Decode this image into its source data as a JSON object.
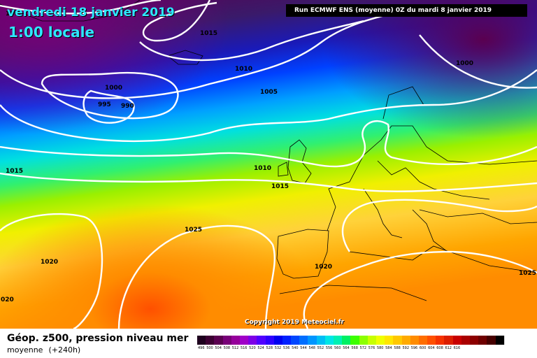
{
  "header": {
    "date": "vendredi 18 janvier 2019",
    "time": "1:00 locale",
    "run": "Run ECMWF ENS (moyenne) 0Z du mardi 8 janvier 2019"
  },
  "copyright": "Copyright 2019 Meteociel.fr",
  "footer": {
    "title": "Géop. z500, pression niveau mer",
    "subtitle": "moyenne",
    "lead": "(+240h)"
  },
  "isobars": [
    {
      "label": "1005",
      "position": "top-left corner"
    },
    {
      "label": "1015",
      "position": "north Atlantic, near Iceland"
    },
    {
      "label": "1010",
      "position": "north Atlantic"
    },
    {
      "label": "1000",
      "position": "west of the low"
    },
    {
      "label": "995",
      "position": "low centre, west"
    },
    {
      "label": "990",
      "position": "low centre, east"
    },
    {
      "label": "1005",
      "position": "north of the British Isles"
    },
    {
      "label": "1000",
      "position": "Scandinavia"
    },
    {
      "label": "1015",
      "position": "western edge"
    },
    {
      "label": "1010",
      "position": "British Isles"
    },
    {
      "label": "1015",
      "position": "British Isles, south"
    },
    {
      "label": "1025",
      "position": "Azores high"
    },
    {
      "label": "1020",
      "position": "mid Atlantic, west"
    },
    {
      "label": "1020",
      "position": "Iberia"
    },
    {
      "label": "020",
      "position": "bottom-left edge"
    },
    {
      "label": "1025",
      "position": "eastern Mediterranean"
    }
  ],
  "legend": {
    "colors": [
      "#1e001e",
      "#3c0032",
      "#5a0050",
      "#780078",
      "#96009b",
      "#a000c8",
      "#7d00e6",
      "#5000ff",
      "#2d00ff",
      "#0000f0",
      "#0020ff",
      "#0046ff",
      "#006eff",
      "#0096ff",
      "#00bef5",
      "#00e6e6",
      "#00f0b4",
      "#00f064",
      "#3cff00",
      "#8cff00",
      "#c8ff00",
      "#f0ff00",
      "#ffe600",
      "#ffc800",
      "#ffaa00",
      "#ff8c00",
      "#ff6e00",
      "#ff5000",
      "#f53200",
      "#dc1e00",
      "#c80000",
      "#aa0000",
      "#8c0000",
      "#6e0000",
      "#460000",
      "#000000"
    ],
    "labels": [
      "496",
      "500",
      "504",
      "508",
      "512",
      "516",
      "520",
      "524",
      "528",
      "532",
      "536",
      "540",
      "544",
      "548",
      "552",
      "556",
      "560",
      "564",
      "568",
      "572",
      "576",
      "580",
      "584",
      "588",
      "592",
      "596",
      "600",
      "604",
      "608",
      "612",
      "616"
    ]
  }
}
